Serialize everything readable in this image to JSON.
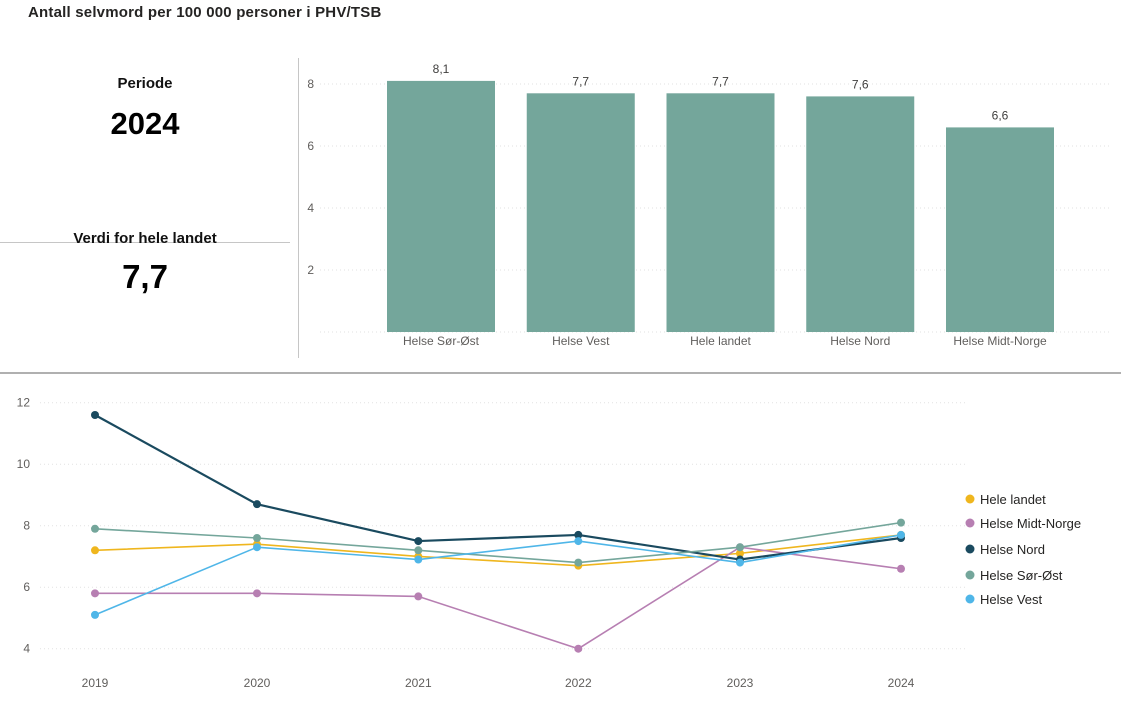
{
  "title": "Antall selvmord per 100 000 personer i PHV/TSB",
  "kpi": {
    "periode_label": "Periode",
    "periode_value": "2024",
    "verdi_label": "Verdi for hele landet",
    "verdi_value": "7,7"
  },
  "colors": {
    "bar": "#74a69b",
    "hele_landet": "#efb61e",
    "helse_midt_norge": "#b77fb2",
    "helse_nord": "#1a4a5f",
    "helse_sor_ost": "#74a69b",
    "helse_vest": "#4fb6e8",
    "grid": "#e2e2e2",
    "axis_text": "#605e5c",
    "divider": "#b0b0b0"
  },
  "chart_data": [
    {
      "type": "bar",
      "title": "",
      "categories": [
        "Helse Sør-Øst",
        "Helse Vest",
        "Hele landet",
        "Helse Nord",
        "Helse Midt-Norge"
      ],
      "values": [
        8.1,
        7.7,
        7.7,
        7.6,
        6.6
      ],
      "value_labels": [
        "8,1",
        "7,7",
        "7,7",
        "7,6",
        "6,6"
      ],
      "xlabel": "",
      "ylabel": "",
      "yticks": [
        2,
        4,
        6,
        8
      ],
      "ylim": [
        0,
        8.8
      ],
      "grid": "horizontal-dotted",
      "bar_color_key": "bar"
    },
    {
      "type": "line",
      "title": "",
      "x": [
        "2019",
        "2020",
        "2021",
        "2022",
        "2023",
        "2024"
      ],
      "series": [
        {
          "name": "Hele landet",
          "color_key": "hele_landet",
          "values": [
            7.2,
            7.4,
            7.0,
            6.7,
            7.1,
            7.7
          ]
        },
        {
          "name": "Helse Midt-Norge",
          "color_key": "helse_midt_norge",
          "values": [
            5.8,
            5.8,
            5.7,
            4.0,
            7.3,
            6.6
          ]
        },
        {
          "name": "Helse Nord",
          "color_key": "helse_nord",
          "values": [
            11.6,
            8.7,
            7.5,
            7.7,
            6.9,
            7.6
          ]
        },
        {
          "name": "Helse Sør-Øst",
          "color_key": "helse_sor_ost",
          "values": [
            7.9,
            7.6,
            7.2,
            6.8,
            7.3,
            8.1
          ]
        },
        {
          "name": "Helse Vest",
          "color_key": "helse_vest",
          "values": [
            5.1,
            7.3,
            6.9,
            7.5,
            6.8,
            7.7
          ]
        }
      ],
      "yticks": [
        4,
        6,
        8,
        10,
        12
      ],
      "ylim": [
        3.4,
        12.4
      ],
      "grid": "horizontal-dotted",
      "legend_position": "right"
    }
  ]
}
